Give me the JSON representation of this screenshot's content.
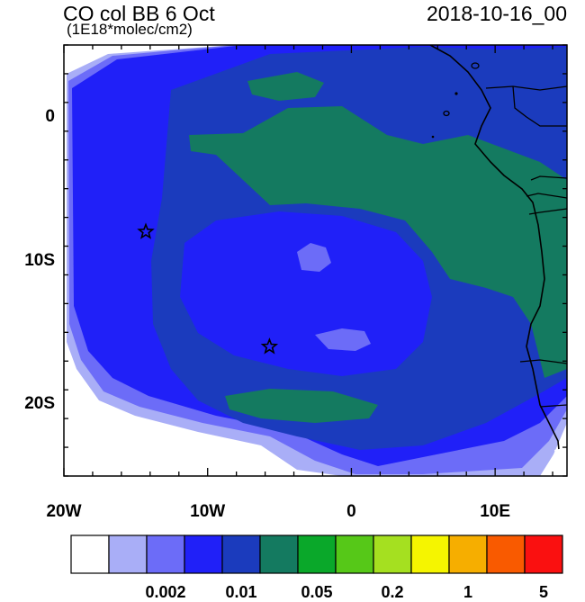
{
  "header": {
    "title": "CO col BB 6 Oct",
    "units": "(1E18*molec/cm2)",
    "valid_time": "2018-10-16_00"
  },
  "map": {
    "type": "filled-contour",
    "region": {
      "lon": [
        -20,
        15
      ],
      "lat": [
        -25,
        5
      ]
    },
    "x_ticks": [
      {
        "value": -20,
        "label": "20W"
      },
      {
        "value": -10,
        "label": "10W"
      },
      {
        "value": 0,
        "label": "0"
      },
      {
        "value": 10,
        "label": "10E"
      }
    ],
    "y_ticks": [
      {
        "value": 0,
        "label": "0"
      },
      {
        "value": -10,
        "label": "10S"
      },
      {
        "value": -20,
        "label": "20S"
      }
    ],
    "markers": [
      {
        "name": "star-1",
        "lon": -14.3,
        "lat": -8.0
      },
      {
        "name": "star-2",
        "lon": -5.7,
        "lat": -16.0
      }
    ],
    "fill_colors": {
      "ocean_edge_white": "#ffffff",
      "pale_blue": "#a9aef7",
      "light_blue": "#6c6cf8",
      "blue": "#2020f8",
      "dark_blue": "#1b3bbd",
      "teal": "#147a60"
    }
  },
  "colorbar": {
    "colors": [
      "#ffffff",
      "#a9aef7",
      "#6c6cf8",
      "#2020f8",
      "#1b3bbd",
      "#147a60",
      "#0aa82a",
      "#56c818",
      "#a5e020",
      "#f5f500",
      "#f6ae00",
      "#f95a00",
      "#fa1010"
    ],
    "labels": [
      "0.002",
      "0.01",
      "0.05",
      "0.2",
      "1",
      "5"
    ]
  }
}
